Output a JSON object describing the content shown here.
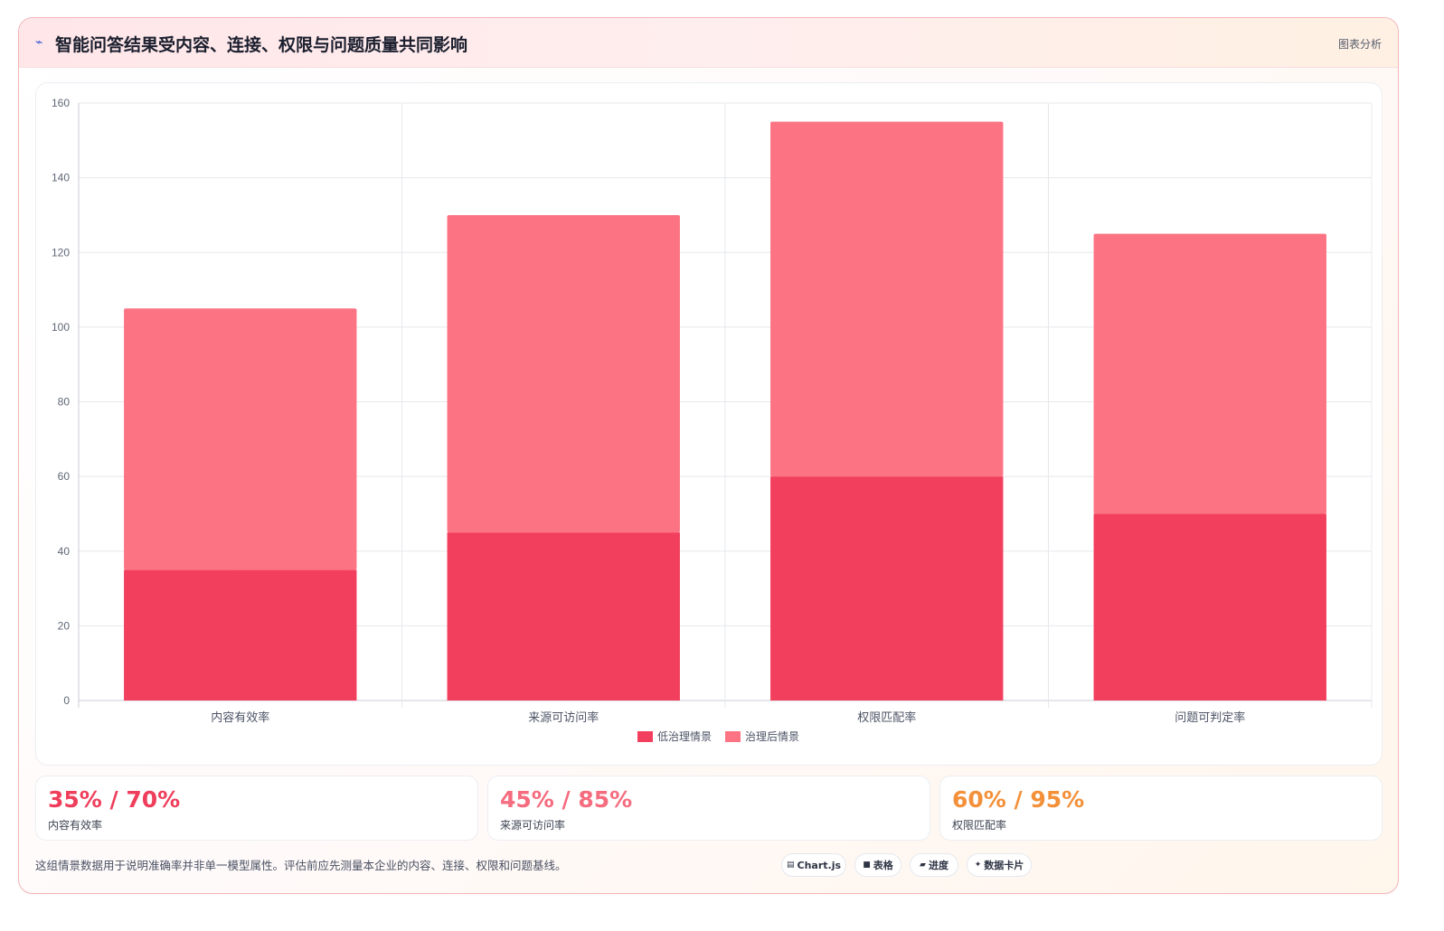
{
  "header": {
    "title": "智能问答结果受内容、连接、权限与问题质量共同影响",
    "tag": "图表分析",
    "icon": "sparkle-icon"
  },
  "colors": {
    "series_low": "#f23f5e",
    "series_high": "#fc7484",
    "stat_1": "#ef3e5b",
    "stat_2": "#f56c7f",
    "stat_3": "#f39039"
  },
  "chart_data": {
    "type": "bar",
    "stacked": true,
    "categories": [
      "内容有效率",
      "来源可访问率",
      "权限匹配率",
      "问题可判定率"
    ],
    "series": [
      {
        "name": "低治理情景",
        "values": [
          35,
          45,
          60,
          50
        ]
      },
      {
        "name": "治理后情景",
        "values": [
          70,
          85,
          95,
          75
        ]
      }
    ],
    "ylim": [
      0,
      160
    ],
    "yticks": [
      0,
      20,
      40,
      60,
      80,
      100,
      120,
      140,
      160
    ],
    "grid": true,
    "legend": "bottom-center"
  },
  "stats": [
    {
      "value": "35% / 70%",
      "label": "内容有效率"
    },
    {
      "value": "45% / 85%",
      "label": "来源可访问率"
    },
    {
      "value": "60% / 95%",
      "label": "权限匹配率"
    }
  ],
  "footnote": "这组情景数据用于说明准确率并非单一模型属性。评估前应先测量本企业的内容、连接、权限和问题基线。",
  "tools": [
    {
      "icon": "chart-icon",
      "glyph": "▤",
      "label": "Chart.js"
    },
    {
      "icon": "table-icon",
      "glyph": "■",
      "label": "表格"
    },
    {
      "icon": "progress-icon",
      "glyph": "▰",
      "label": "进度"
    },
    {
      "icon": "data-card-icon",
      "glyph": "✦",
      "label": "数据卡片"
    }
  ]
}
